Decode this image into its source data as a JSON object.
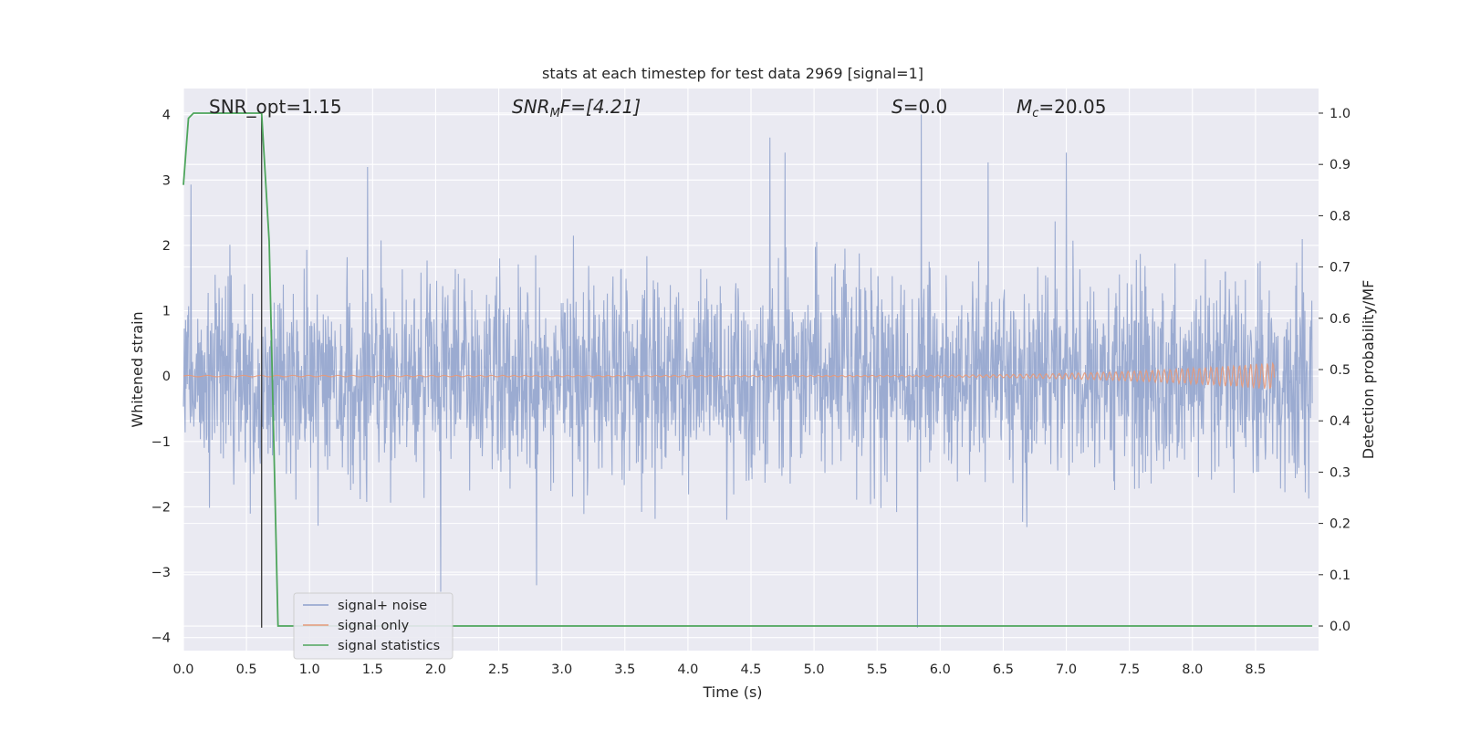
{
  "chart_data": {
    "type": "line",
    "title": "stats at each timestep for test data 2969 [signal=1]",
    "xlabel": "Time (s)",
    "ylabel": "Whitened strain",
    "y2label": "Detection probability/MF",
    "xlim": [
      0.0,
      9.0
    ],
    "ylim": [
      -4.2,
      4.4
    ],
    "y2lim": [
      -0.048,
      1.048
    ],
    "x_ticks": [
      "0.0",
      "0.5",
      "1.0",
      "1.5",
      "2.0",
      "2.5",
      "3.0",
      "3.5",
      "4.0",
      "4.5",
      "5.0",
      "5.5",
      "6.0",
      "6.5",
      "7.0",
      "7.5",
      "8.0",
      "8.5"
    ],
    "y_ticks": [
      "4",
      "3",
      "2",
      "1",
      "0",
      "−1",
      "−2",
      "−3",
      "−4"
    ],
    "y2_ticks": [
      "1.0",
      "0.9",
      "0.8",
      "0.7",
      "0.6",
      "0.5",
      "0.4",
      "0.3",
      "0.2",
      "0.1",
      "0.0"
    ],
    "grid": true,
    "legend_position": "lower-left",
    "annotations": {
      "snr_opt": "SNR_opt=1.15",
      "snr_mf_label": "SNR",
      "snr_mf_sub": "M",
      "snr_mf_value": "F=[4.21]",
      "s_label": "S",
      "s_value": "=0.0",
      "mc_label": "M",
      "mc_sub": "c",
      "mc_value": "=20.05"
    },
    "series": [
      {
        "name": "signal+ noise",
        "color": "#8da0cb",
        "description": "dense whitened noise, amplitude mostly within [-2.5, 2.5]",
        "extremes": [
          {
            "x": 0.06,
            "y": 2.93
          },
          {
            "x": 1.46,
            "y": 3.2
          },
          {
            "x": 2.04,
            "y": -3.3
          },
          {
            "x": 2.8,
            "y": -3.2
          },
          {
            "x": 4.65,
            "y": 3.65
          },
          {
            "x": 4.77,
            "y": 3.42
          },
          {
            "x": 5.85,
            "y": 4.0
          },
          {
            "x": 5.82,
            "y": -3.85
          },
          {
            "x": 6.38,
            "y": 3.27
          },
          {
            "x": 7.0,
            "y": 3.42
          }
        ]
      },
      {
        "name": "signal only",
        "color": "#e5997a",
        "description": "chirp growing in amplitude, visible from ~6.0 s to 8.65 s, peak amplitude ~0.2",
        "t_end": 8.65,
        "peak_amplitude": 0.2
      },
      {
        "name": "signal statistics",
        "color": "#4ea55c",
        "axis": "right",
        "x": [
          0.0,
          0.04,
          0.08,
          0.15,
          0.62,
          0.68,
          0.75,
          8.95
        ],
        "y": [
          0.86,
          0.99,
          1.0,
          1.0,
          1.0,
          0.75,
          0.0,
          0.0
        ]
      }
    ],
    "vertical_marker": {
      "x": 0.62,
      "y_from": -3.85,
      "y_to": 4.0,
      "color": "#444444"
    }
  }
}
